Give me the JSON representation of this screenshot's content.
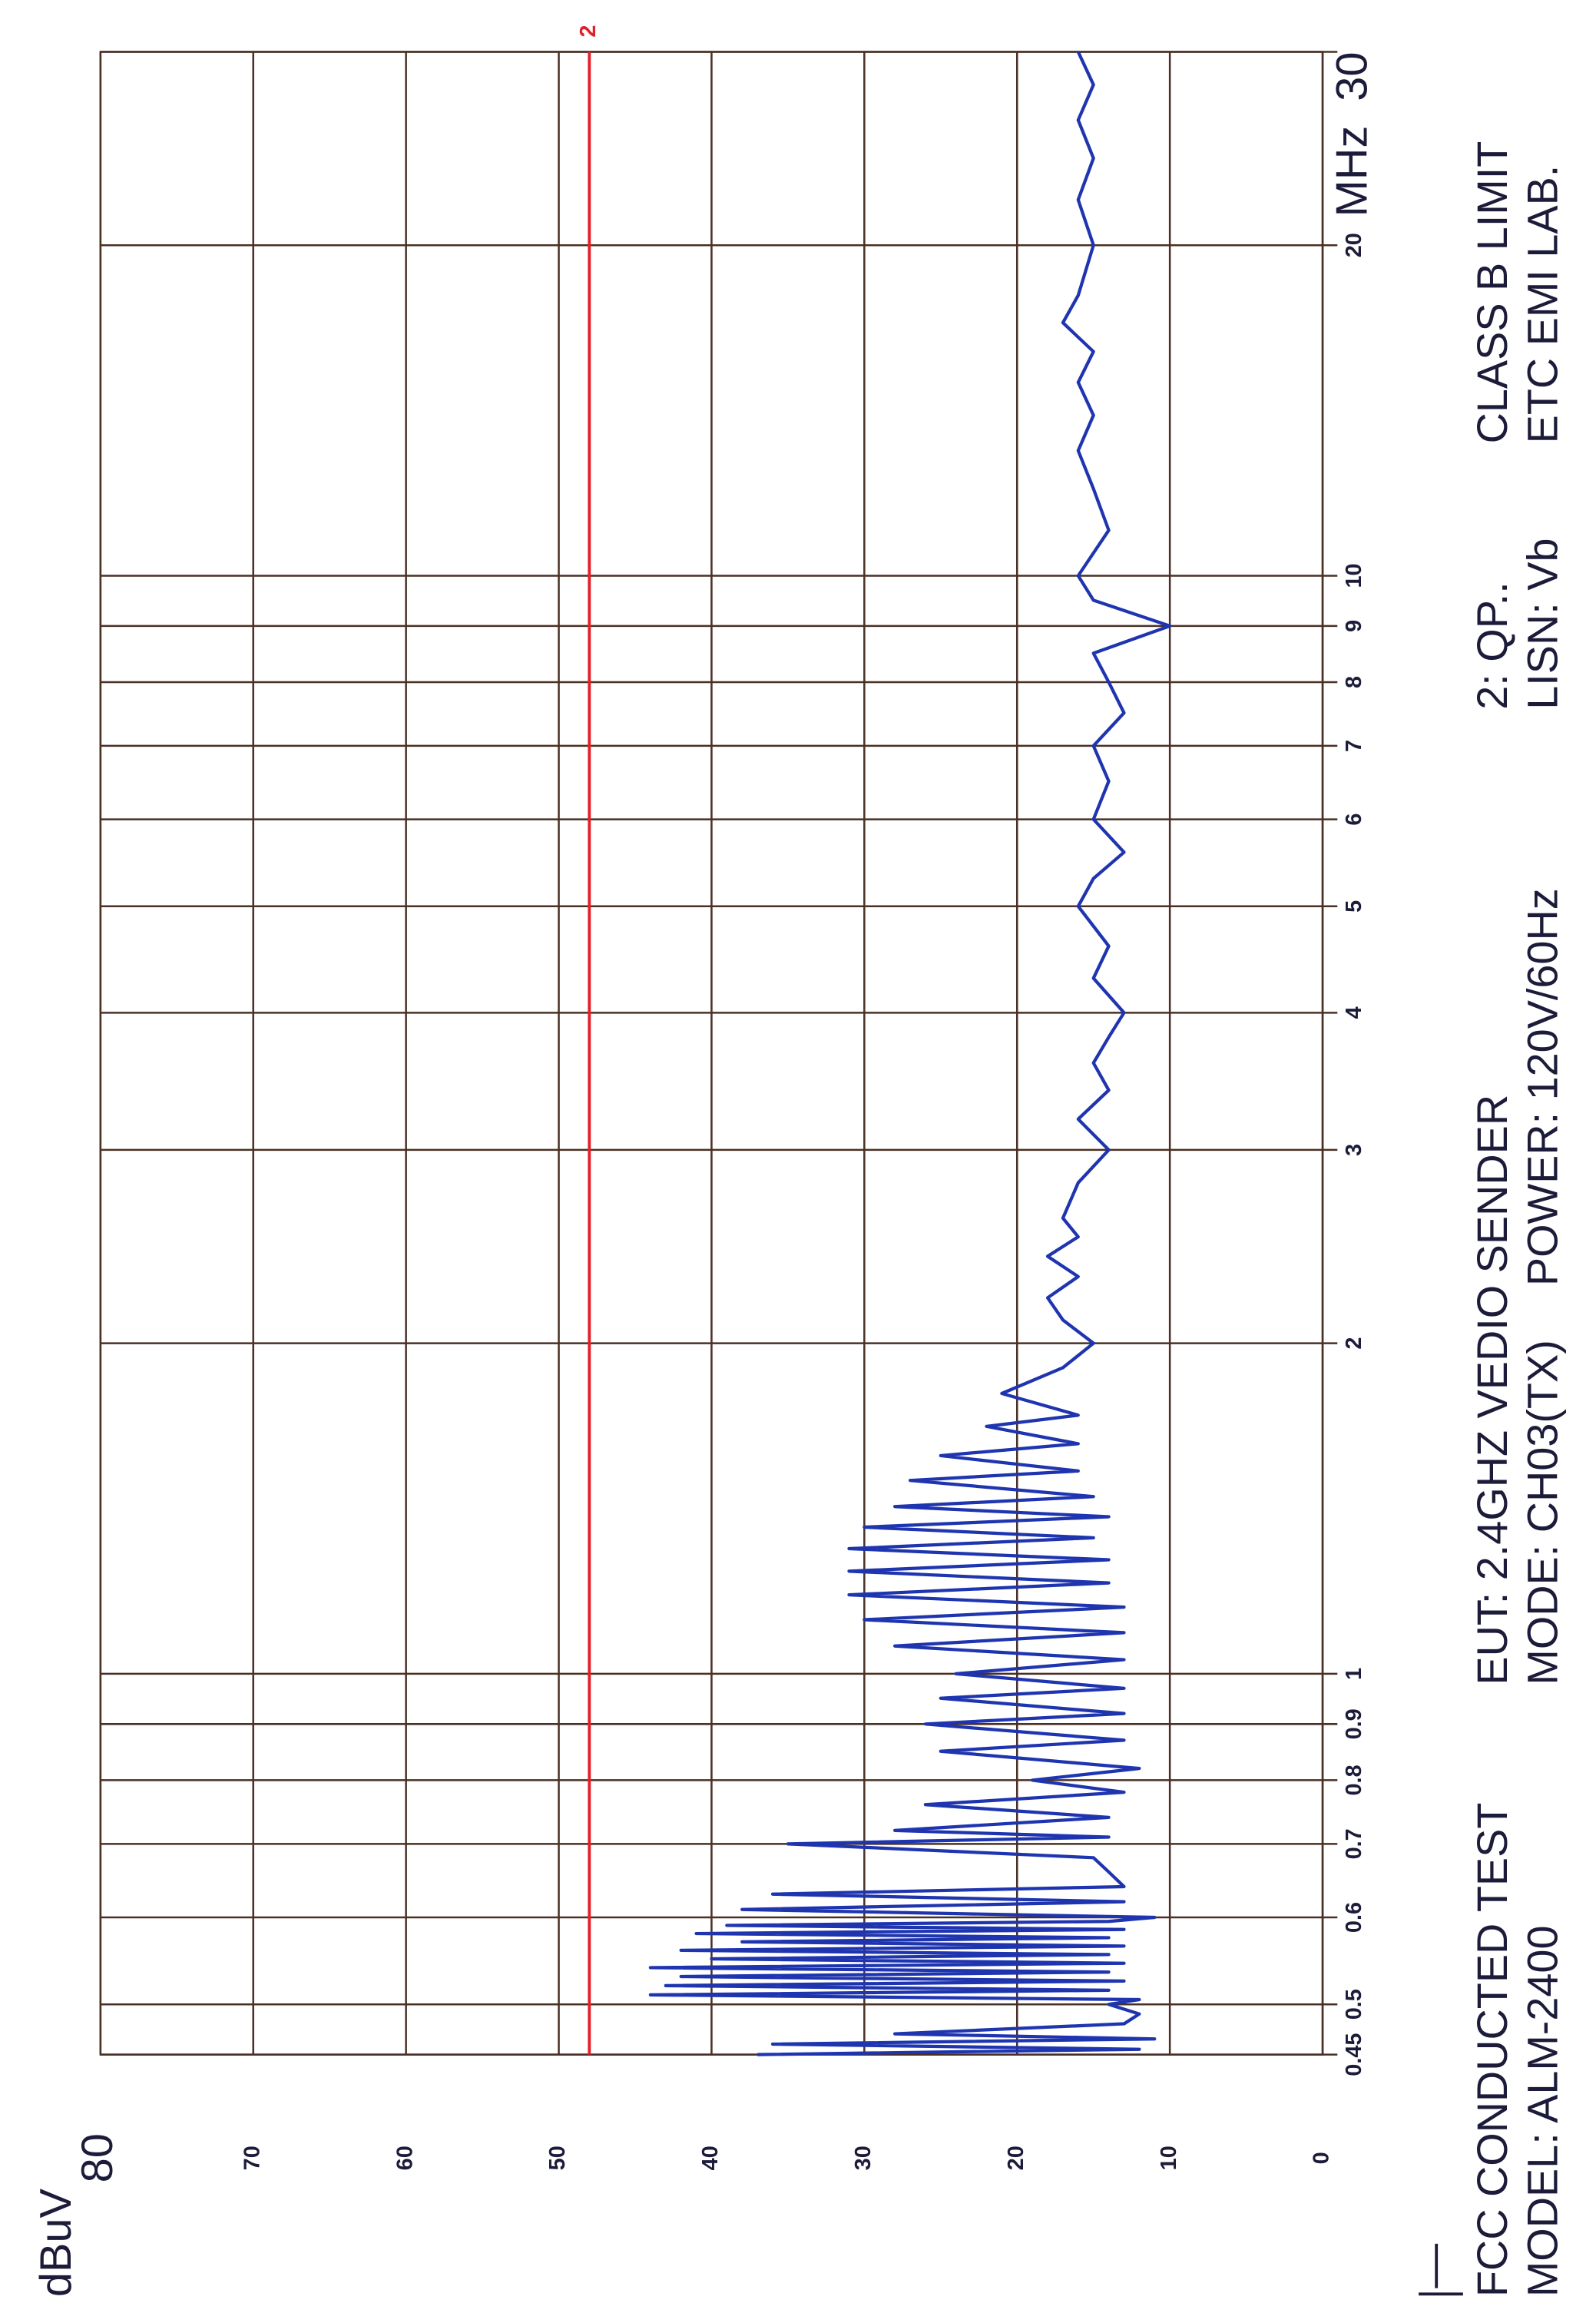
{
  "chart_data": {
    "type": "line",
    "y_label": "dBuV",
    "x_label": "MHz",
    "log_x": true,
    "grid": true,
    "xlim": [
      0.45,
      30
    ],
    "xticks": [
      0.45,
      0.5,
      0.6,
      0.7,
      0.8,
      0.9,
      1,
      2,
      3,
      4,
      5,
      6,
      7,
      8,
      9,
      10,
      20,
      30
    ],
    "ylim": [
      0,
      80
    ],
    "yticks": [
      0,
      10,
      20,
      30,
      40,
      50,
      60,
      70,
      80
    ],
    "x": [
      0.45,
      0.455,
      0.46,
      0.465,
      0.47,
      0.48,
      0.49,
      0.5,
      0.505,
      0.51,
      0.515,
      0.52,
      0.525,
      0.53,
      0.535,
      0.54,
      0.545,
      0.55,
      0.555,
      0.56,
      0.565,
      0.57,
      0.575,
      0.58,
      0.585,
      0.59,
      0.595,
      0.6,
      0.61,
      0.62,
      0.63,
      0.64,
      0.66,
      0.68,
      0.7,
      0.71,
      0.72,
      0.74,
      0.76,
      0.78,
      0.8,
      0.82,
      0.85,
      0.87,
      0.9,
      0.92,
      0.95,
      0.97,
      1.0,
      1.03,
      1.06,
      1.09,
      1.12,
      1.15,
      1.18,
      1.21,
      1.24,
      1.27,
      1.3,
      1.33,
      1.36,
      1.39,
      1.42,
      1.45,
      1.5,
      1.53,
      1.58,
      1.62,
      1.68,
      1.72,
      1.8,
      1.9,
      2.0,
      2.1,
      2.2,
      2.3,
      2.4,
      2.5,
      2.6,
      2.8,
      3.0,
      3.2,
      3.4,
      3.6,
      3.8,
      4.0,
      4.3,
      4.6,
      5.0,
      5.3,
      5.6,
      6.0,
      6.5,
      7.0,
      7.5,
      8.0,
      8.5,
      9.0,
      9.5,
      10,
      11,
      12,
      13,
      14,
      15,
      16,
      17,
      18,
      20,
      22,
      24,
      26,
      28,
      30
    ],
    "series": [
      {
        "color": "#1f35b0",
        "values": [
          37,
          12,
          36,
          11,
          28,
          13,
          12,
          14,
          12,
          44,
          14,
          43,
          13,
          42,
          14,
          44,
          13,
          40,
          14,
          42,
          13,
          38,
          14,
          41,
          13,
          39,
          14,
          11,
          38,
          13,
          36,
          13,
          14,
          15,
          35,
          14,
          28,
          14,
          26,
          13,
          19,
          12,
          25,
          13,
          26,
          13,
          25,
          13,
          24,
          13,
          28,
          13,
          30,
          13,
          31,
          14,
          31,
          14,
          31,
          15,
          30,
          14,
          28,
          15,
          27,
          16,
          25,
          16,
          22,
          16,
          21,
          17,
          15,
          17,
          18,
          16,
          18,
          16,
          17,
          16,
          14,
          16,
          14,
          15,
          14,
          13,
          15,
          14,
          16,
          15,
          13,
          15,
          14,
          15,
          13,
          14,
          15,
          10,
          15,
          16,
          14,
          15,
          16,
          15,
          16,
          15,
          17,
          16,
          15,
          16,
          15,
          16,
          15,
          16
        ]
      }
    ],
    "limit_line": {
      "name": "2",
      "value": 48,
      "color": "#e3202a"
    },
    "notes": {
      "test": "FCC CONDUCTED TEST",
      "model": "MODEL:  ALM-2400",
      "eut": "EUT: 2.4GHZ VEDIO SENDER",
      "mode": "MODE: CH03(TX)",
      "power": "POWER: 120V/60Hz",
      "detector": "2: QP..",
      "lisn": "LISN: Vb",
      "limit": "CLASS B LIMIT",
      "lab": "ETC EMI LAB."
    }
  }
}
